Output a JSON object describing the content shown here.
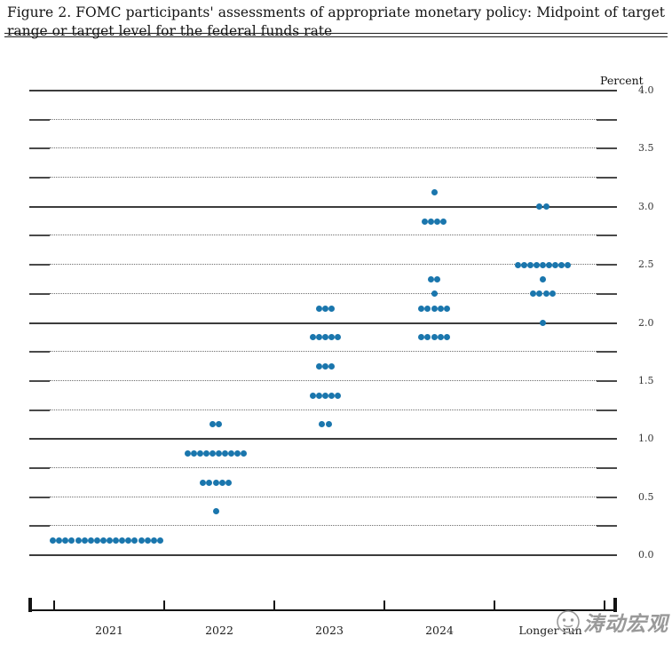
{
  "header": {
    "figure_label": "Figure 2.",
    "title": "FOMC participants' assessments of appropriate monetary policy: Midpoint of target range or target level for the federal funds rate"
  },
  "chart_data": {
    "type": "scatter",
    "subtype": "fomc-dot-plot",
    "title": "FOMC participants' assessments of appropriate monetary policy: Midpoint of target range or target level for the federal funds rate",
    "ylabel": "Percent",
    "ylim": [
      0.0,
      4.0
    ],
    "y_minor_step": 0.25,
    "ytick_label_step": 0.5,
    "ytick_labels": [
      "0.0",
      "0.5",
      "1.0",
      "1.5",
      "2.0",
      "2.5",
      "3.0",
      "3.5",
      "4.0"
    ],
    "grid": {
      "solid_lines_at": [
        0.0,
        1.0,
        2.0,
        3.0,
        4.0
      ],
      "dotted_lines_every": 0.25,
      "legend": "none"
    },
    "categories": [
      "2021",
      "2022",
      "2023",
      "2024",
      "Longer run"
    ],
    "series": [
      {
        "category": "2021",
        "dots": [
          {
            "rate": 0.125,
            "count": 18
          }
        ]
      },
      {
        "category": "2022",
        "dots": [
          {
            "rate": 1.125,
            "count": 2
          },
          {
            "rate": 0.875,
            "count": 10
          },
          {
            "rate": 0.625,
            "count": 5
          },
          {
            "rate": 0.375,
            "count": 1
          }
        ]
      },
      {
        "category": "2023",
        "dots": [
          {
            "rate": 2.125,
            "count": 3
          },
          {
            "rate": 1.875,
            "count": 5
          },
          {
            "rate": 1.625,
            "count": 3
          },
          {
            "rate": 1.375,
            "count": 5
          },
          {
            "rate": 1.125,
            "count": 2
          }
        ]
      },
      {
        "category": "2024",
        "dots": [
          {
            "rate": 3.125,
            "count": 1
          },
          {
            "rate": 2.875,
            "count": 4
          },
          {
            "rate": 2.375,
            "count": 2
          },
          {
            "rate": 2.25,
            "count": 1
          },
          {
            "rate": 2.125,
            "count": 5
          },
          {
            "rate": 1.875,
            "count": 5
          }
        ]
      },
      {
        "category": "Longer run",
        "dots": [
          {
            "rate": 3.0,
            "count": 2
          },
          {
            "rate": 2.5,
            "count": 9
          },
          {
            "rate": 2.375,
            "count": 1
          },
          {
            "rate": 2.25,
            "count": 4
          },
          {
            "rate": 2.0,
            "count": 1
          }
        ]
      }
    ],
    "dot_color": "#1a76ad"
  },
  "watermark": {
    "logo": "taodong-circle-logo",
    "text": "涛动宏观"
  }
}
